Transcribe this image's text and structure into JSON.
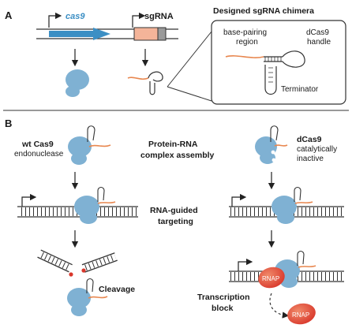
{
  "panel_a": {
    "label": "A",
    "gene_cas9": "cas9",
    "gene_sgrna": "sgRNA",
    "chimera_title": "Designed sgRNA chimera",
    "base_pairing_line1": "base-pairing",
    "base_pairing_line2": "region",
    "handle_line1": "dCas9",
    "handle_line2": "handle",
    "terminator": "Terminator"
  },
  "panel_b": {
    "label": "B",
    "wt_line1": "wt Cas9",
    "wt_line2": "endonuclease",
    "assembly_line1": "Protein-RNA",
    "assembly_line2": "complex assembly",
    "dcas_line1": "dCas9",
    "dcas_line2": "catalytically",
    "dcas_line3": "inactive",
    "targeting_line1": "RNA-guided",
    "targeting_line2": "targeting",
    "cleavage": "Cleavage",
    "block_line1": "Transcription",
    "block_line2": "block",
    "rnap_label": "RNAP"
  },
  "colors": {
    "cas9": "#7fb1d3",
    "sgrna": "#e8874f",
    "rnap": "#e2483a",
    "gene_arrow": "#3c8fc4"
  }
}
